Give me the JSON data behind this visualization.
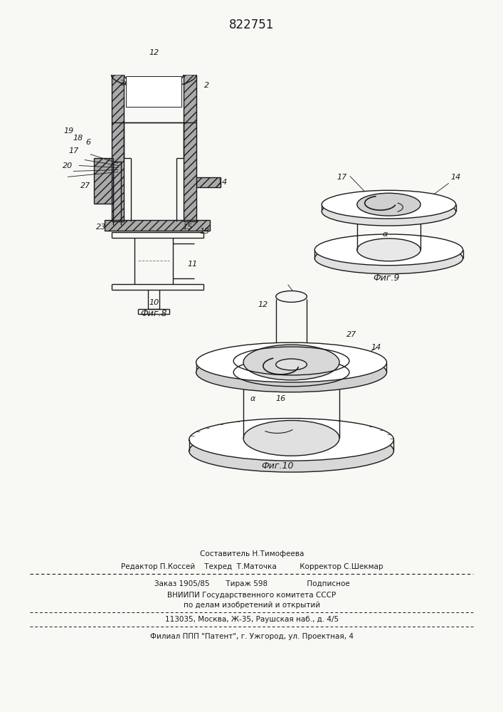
{
  "patent_number": "822751",
  "bg": "#f8f8f5",
  "lc": "#1a1a1a",
  "fig8_caption": "Фиг.8",
  "fig9_caption": "Фиг.9",
  "fig10_caption": "Фиг.10",
  "footer_sestavitel": "Составитель Н.Тимофеева",
  "footer_editor": "Редактор П.Коссей    Техред  Т.Маточка          Корректор С.Шекмар",
  "footer_zakaz": "Заказ 1905/85       Тираж 598                 Подписное",
  "footer_vniipи": "ВНИИПИ Государственного комитета СССР",
  "footer_po_delam": "по делам изобретений и открытий",
  "footer_address": "113035, Москва, Ж-35, Раушская наб., д. 4/5",
  "footer_filial": "Филиал ППП \"Патент\", г. Ужгород, ул. Проектная, 4"
}
